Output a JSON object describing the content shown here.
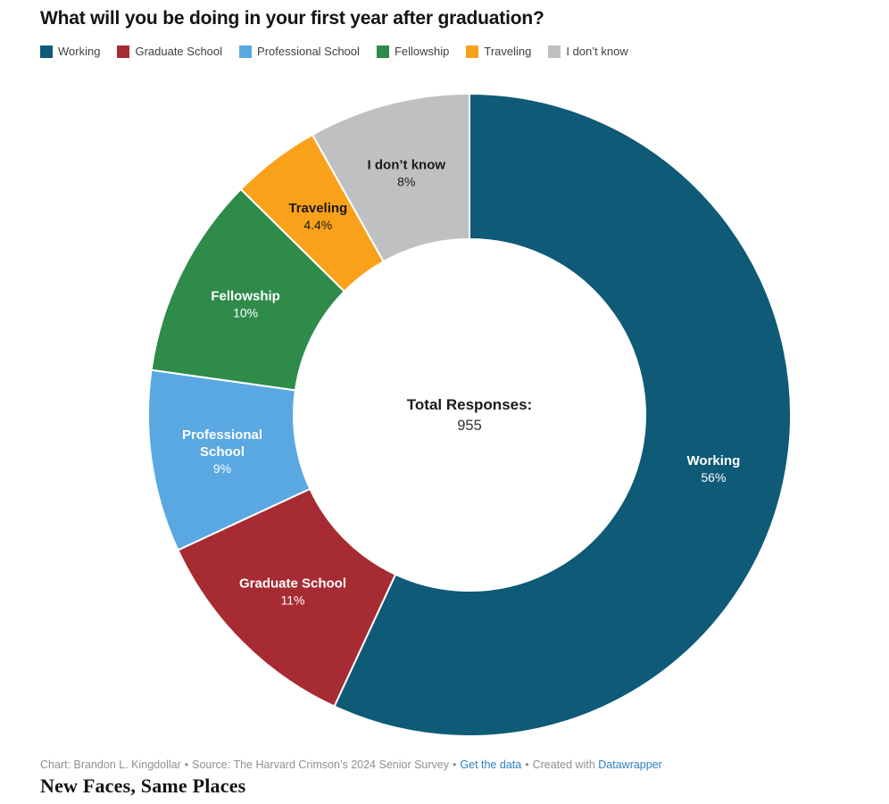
{
  "title": "What will you be doing in your first year after graduation?",
  "chart_data": {
    "type": "pie",
    "subtype": "donut",
    "title": "What will you be doing in your first year after graduation?",
    "categories": [
      "Working",
      "Graduate School",
      "Professional School",
      "Fellowship",
      "Traveling",
      "I don’t know"
    ],
    "values": [
      56,
      11,
      9,
      10,
      4.4,
      8
    ],
    "value_labels": [
      "56%",
      "11%",
      "9%",
      "10%",
      "4.4%",
      "8%"
    ],
    "colors": [
      "#0E5A77",
      "#A72B33",
      "#59A8E2",
      "#2E8B4A",
      "#F9A11B",
      "#BFC0C2"
    ],
    "label_text_colors": [
      "#FFFFFF",
      "#FFFFFF",
      "#FFFFFF",
      "#FFFFFF",
      "#1A1A1A",
      "#1A1A1A"
    ],
    "name_lines": [
      [
        "Working"
      ],
      [
        "Graduate School"
      ],
      [
        "Professional",
        "School"
      ],
      [
        "Fellowship"
      ],
      [
        "Traveling"
      ],
      [
        "I don’t know"
      ]
    ],
    "start_angle": "top",
    "direction": "clockwise",
    "legend_position": "top",
    "center_label": "Total Responses:",
    "center_value": "955"
  },
  "footer": {
    "credit": "Chart: Brandon L. Kingdollar",
    "separator": "•",
    "source": "Source: The Harvard Crimson’s 2024 Senior Survey",
    "get_data_link": "Get the data",
    "created_with": "Created with",
    "datawrapper_link": "Datawrapper",
    "link_color": "#2f80c3"
  },
  "caption": "New Faces, Same Places"
}
